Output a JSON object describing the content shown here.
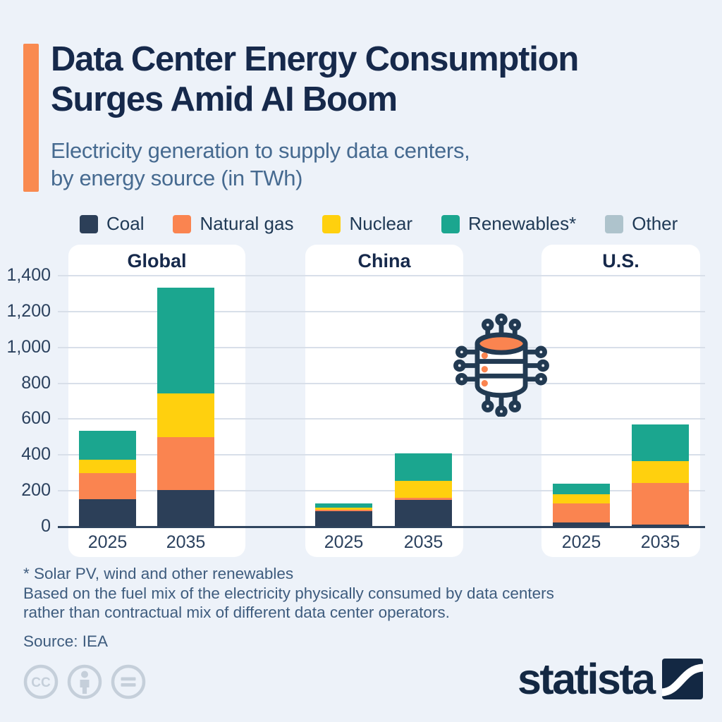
{
  "header": {
    "accent_color": "#F98A50",
    "title_line1": "Data Center Energy Consumption",
    "title_line2": "Surges Amid AI Boom",
    "subtitle_line1": "Electricity generation to supply data centers,",
    "subtitle_line2": "by energy source (in TWh)"
  },
  "legend": {
    "items": [
      {
        "label": "Coal",
        "color": "#2C3F58"
      },
      {
        "label": "Natural gas",
        "color": "#FA8450"
      },
      {
        "label": "Nuclear",
        "color": "#FFD00E"
      },
      {
        "label": "Renewables*",
        "color": "#1BA68F"
      },
      {
        "label": "Other",
        "color": "#AEC3CC"
      }
    ]
  },
  "chart_data": {
    "type": "bar",
    "stacked": true,
    "unit": "TWh",
    "title": "Electricity generation to supply data centers, by energy source (in TWh)",
    "ylim": [
      0,
      1400
    ],
    "grid": true,
    "legend_position": "top",
    "yticks": [
      {
        "value": 0,
        "label": "0"
      },
      {
        "value": 200,
        "label": "200"
      },
      {
        "value": 400,
        "label": "400"
      },
      {
        "value": 600,
        "label": "600"
      },
      {
        "value": 800,
        "label": "800"
      },
      {
        "value": 1000,
        "label": "1,000"
      },
      {
        "value": 1200,
        "label": "1,200"
      },
      {
        "value": 1400,
        "label": "1,400"
      }
    ],
    "series": [
      {
        "name": "Coal",
        "color": "#2C3F58"
      },
      {
        "name": "Natural gas",
        "color": "#FA8450"
      },
      {
        "name": "Nuclear",
        "color": "#FFD00E"
      },
      {
        "name": "Renewables*",
        "color": "#1BA68F"
      },
      {
        "name": "Other",
        "color": "#AEC3CC"
      }
    ],
    "groups": [
      {
        "label": "Global",
        "bars": [
          {
            "category": "2025",
            "values": [
              155,
              145,
              75,
              160,
              0
            ],
            "total": 535
          },
          {
            "category": "2035",
            "values": [
              205,
              295,
              245,
              590,
              0
            ],
            "total": 1335
          }
        ]
      },
      {
        "label": "China",
        "bars": [
          {
            "category": "2025",
            "values": [
              85,
              10,
              10,
              25,
              0
            ],
            "total": 130
          },
          {
            "category": "2035",
            "values": [
              150,
              10,
              95,
              155,
              0
            ],
            "total": 410
          }
        ]
      },
      {
        "label": "U.S.",
        "bars": [
          {
            "category": "2025",
            "values": [
              25,
              105,
              50,
              60,
              0
            ],
            "total": 240
          },
          {
            "category": "2035",
            "values": [
              10,
              235,
              120,
              205,
              0
            ],
            "total": 570
          }
        ]
      }
    ]
  },
  "footnotes": {
    "line1": "* Solar PV, wind and other renewables",
    "line2": "Based on the fuel mix of the electricity physically consumed by data centers",
    "line3": "rather than contractual mix of different data center operators.",
    "source": "Source: IEA"
  },
  "branding": {
    "logo_text": "statista"
  }
}
